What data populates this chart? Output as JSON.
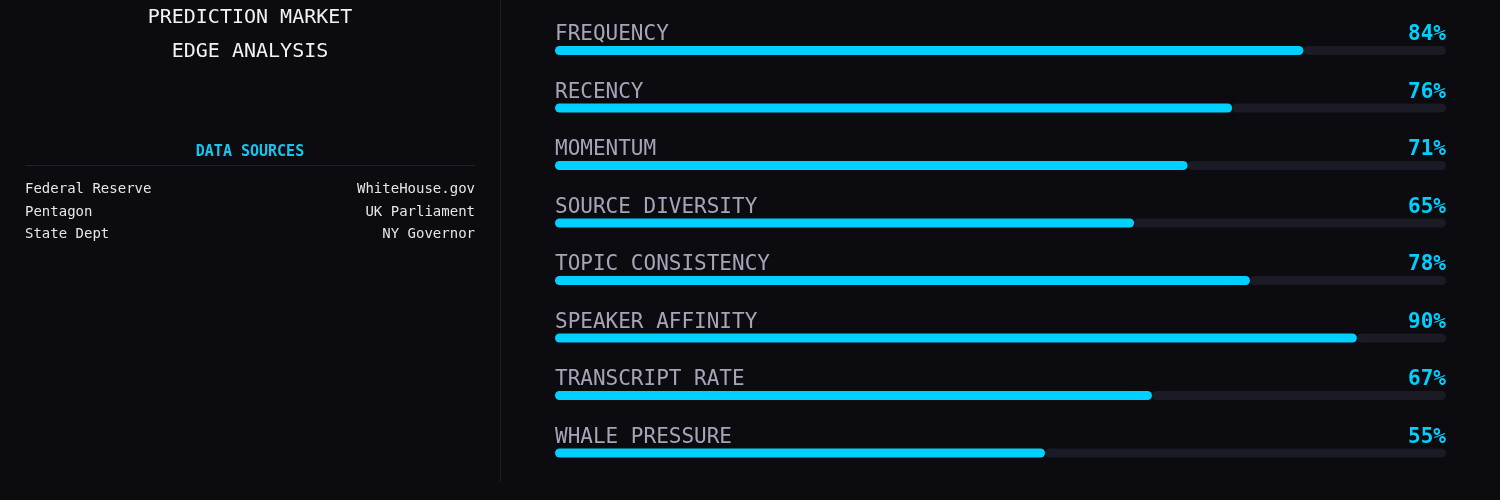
{
  "chart_data": [
    {
      "type": "other",
      "title": "PREDICTION MARKET\nEDGE ANALYSIS",
      "subtitle": "DATA SOURCES",
      "annotations": [
        "Federal Reserve",
        "WhiteHouse.gov",
        "Pentagon",
        "UK Parliament",
        "State Dept",
        "NY Governor"
      ]
    },
    {
      "type": "bar",
      "orientation": "horizontal",
      "categories": [
        "FREQUENCY",
        "RECENCY",
        "MOMENTUM",
        "SOURCE DIVERSITY",
        "TOPIC CONSISTENCY",
        "SPEAKER AFFINITY",
        "TRANSCRIPT RATE",
        "WHALE PRESSURE"
      ],
      "values": [
        84,
        76,
        71,
        65,
        78,
        90,
        67,
        55
      ],
      "value_labels": [
        "84%",
        "76%",
        "71%",
        "65%",
        "78%",
        "90%",
        "67%",
        "55%"
      ],
      "color": "#00d0ff",
      "xlim": [
        0,
        100
      ]
    }
  ]
}
